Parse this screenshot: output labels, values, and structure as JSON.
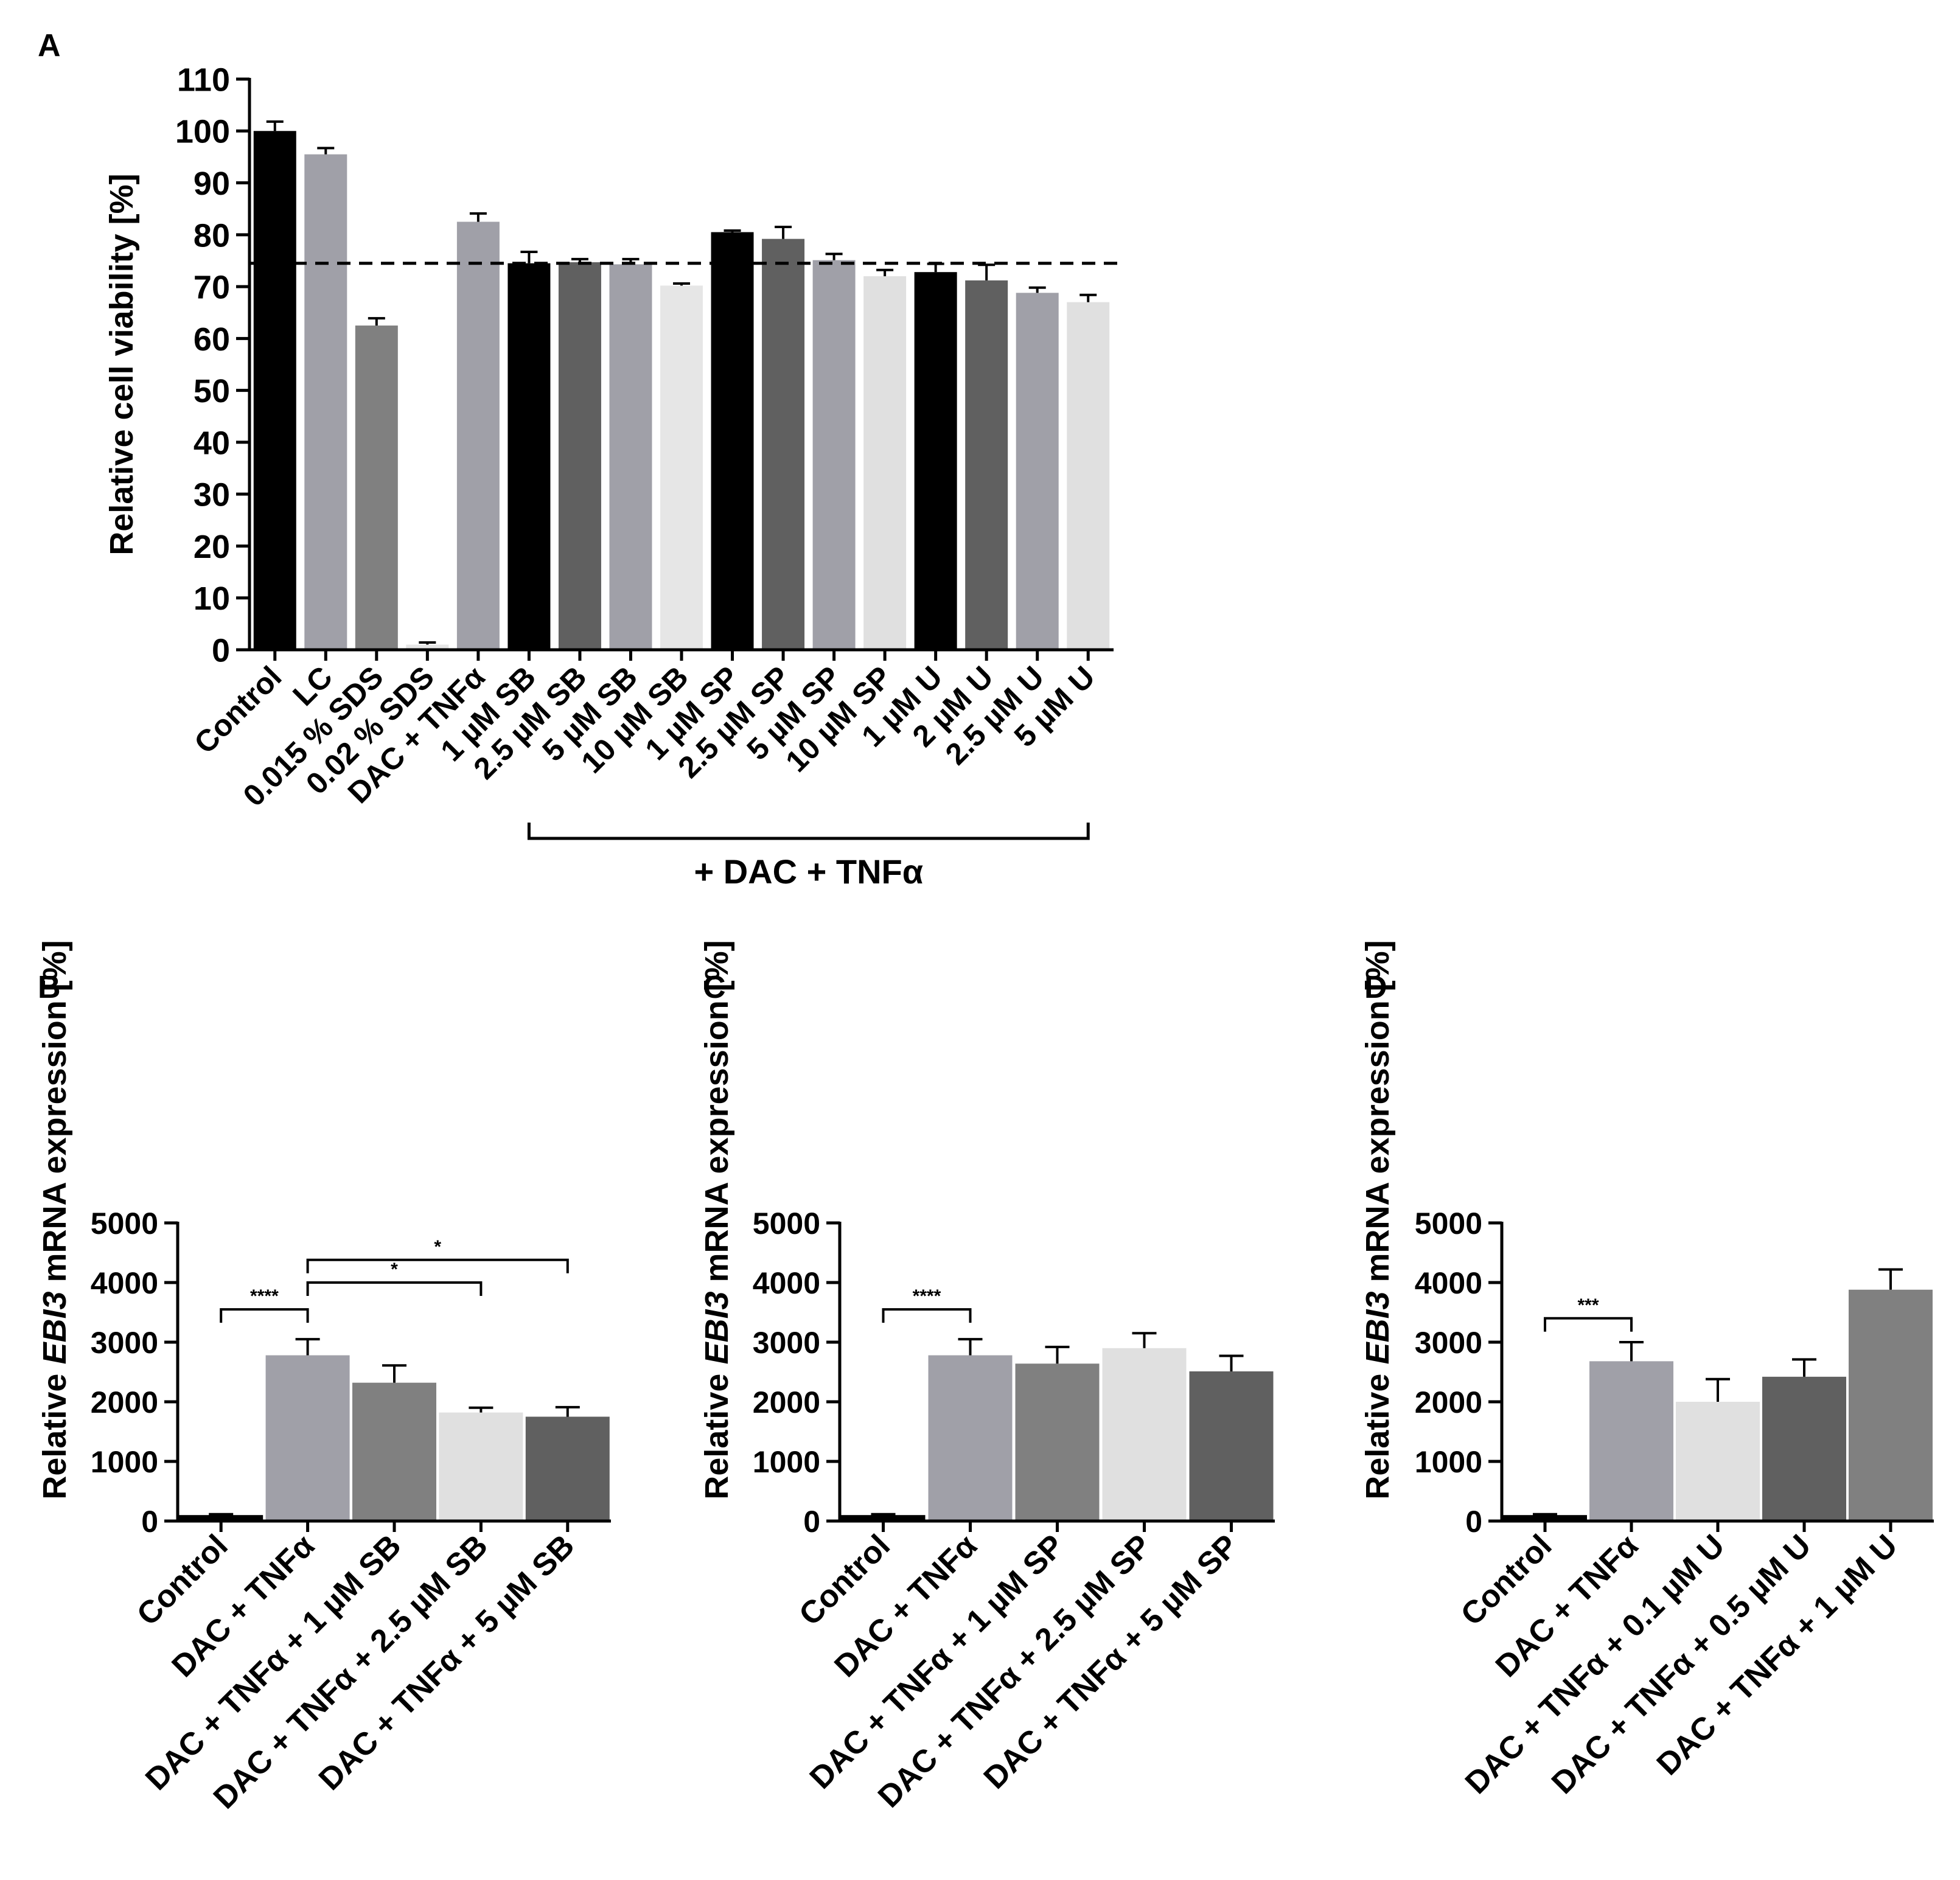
{
  "chart_data": [
    {
      "panel": "A",
      "type": "bar",
      "ylabel": "Relative cell viability [%]",
      "ylim": [
        0,
        110
      ],
      "yticks": [
        0,
        10,
        20,
        30,
        40,
        50,
        60,
        70,
        80,
        90,
        100,
        110
      ],
      "reference_line": 74.5,
      "bracket": {
        "label": "+ DAC + TNFα",
        "from": 5,
        "to": 16
      },
      "categories": [
        "Control",
        "LC",
        "0.015 % SDS",
        "0.02 % SDS",
        "DAC + TNFα",
        "1 µM SB",
        "2.5 µM SB",
        "5 µM SB",
        "10 µM SB",
        "1 µM SP",
        "2.5 µM SP",
        "5 µM SP",
        "10 µM SP",
        "1 µM U",
        "2 µM U",
        "2.5 µM U",
        "5 µM U"
      ],
      "values": [
        100,
        95.5,
        62.5,
        1,
        82.5,
        74.5,
        74.7,
        74.3,
        70.2,
        80.5,
        79.2,
        75.1,
        72,
        72.8,
        71.2,
        68.8,
        67
      ],
      "errors": [
        1.8,
        1.2,
        1.4,
        0.4,
        1.6,
        2.2,
        0.6,
        1.0,
        0.4,
        0.3,
        2.3,
        1.2,
        1.2,
        1.6,
        3.0,
        1.0,
        1.4
      ],
      "colors": [
        "#000000",
        "#a0a0a8",
        "#808080",
        "#e6e6e6",
        "#a0a0a8",
        "#000000",
        "#606060",
        "#a0a0a8",
        "#e6e6e6",
        "#000000",
        "#606060",
        "#a0a0a8",
        "#e0e0e0",
        "#000000",
        "#606060",
        "#a0a0a8",
        "#e0e0e0"
      ]
    },
    {
      "panel": "B",
      "type": "bar",
      "ylabel_prefix": "Relative ",
      "ylabel_gene": "EBI3",
      "ylabel_suffix": " mRNA expression [%]",
      "ylim": [
        0,
        5000
      ],
      "yticks": [
        0,
        1000,
        2000,
        3000,
        4000,
        5000
      ],
      "categories": [
        "Control",
        "DAC + TNFα",
        "DAC + TNFα + 1 µM SB",
        "DAC + TNFα + 2.5 µM SB",
        "DAC + TNFα + 5 µM SB"
      ],
      "values": [
        100,
        2780,
        2320,
        1820,
        1750
      ],
      "errors": [
        15,
        270,
        290,
        80,
        160
      ],
      "colors": [
        "#000000",
        "#a0a0a8",
        "#808080",
        "#e0e0e0",
        "#606060"
      ],
      "significance": [
        {
          "from": 0,
          "to": 1,
          "label": "****",
          "level": 3550
        },
        {
          "from": 1,
          "to": 3,
          "label": "*",
          "level": 4000
        },
        {
          "from": 1,
          "to": 4,
          "label": "*",
          "level": 4380
        }
      ]
    },
    {
      "panel": "C",
      "type": "bar",
      "ylabel_prefix": "Relative ",
      "ylabel_gene": "EBI3",
      "ylabel_suffix": " mRNA expression [%]",
      "ylim": [
        0,
        5000
      ],
      "yticks": [
        0,
        1000,
        2000,
        3000,
        4000,
        5000
      ],
      "categories": [
        "Control",
        "DAC + TNFα",
        "DAC + TNFα + 1 µM SP",
        "DAC + TNFα + 2.5 µM SP",
        "DAC + TNFα + 5 µM SP"
      ],
      "values": [
        100,
        2780,
        2640,
        2900,
        2510
      ],
      "errors": [
        15,
        270,
        280,
        250,
        260
      ],
      "colors": [
        "#000000",
        "#a0a0a8",
        "#808080",
        "#e0e0e0",
        "#606060"
      ],
      "significance": [
        {
          "from": 0,
          "to": 1,
          "label": "****",
          "level": 3550
        }
      ]
    },
    {
      "panel": "D",
      "type": "bar",
      "ylabel_prefix": "Relative ",
      "ylabel_gene": "EBI3",
      "ylabel_suffix": " mRNA expression [%]",
      "ylim": [
        0,
        5000
      ],
      "yticks": [
        0,
        1000,
        2000,
        3000,
        4000,
        5000
      ],
      "categories": [
        "Control",
        "DAC + TNFα",
        "DAC + TNFα + 0.1 µM U",
        "DAC + TNFα + 0.5 µM U",
        "DAC + TNFα + 1 µM U"
      ],
      "values": [
        100,
        2680,
        2000,
        2420,
        3880
      ],
      "errors": [
        15,
        320,
        380,
        290,
        340
      ],
      "colors": [
        "#000000",
        "#a0a0a8",
        "#e0e0e0",
        "#606060",
        "#808080"
      ],
      "significance": [
        {
          "from": 0,
          "to": 1,
          "label": "***",
          "level": 3400
        }
      ]
    }
  ]
}
